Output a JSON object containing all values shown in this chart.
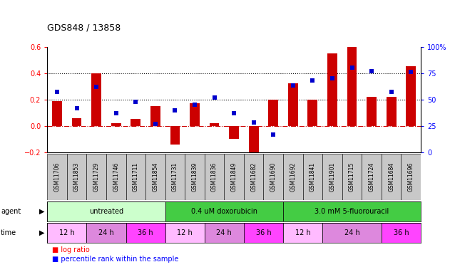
{
  "title": "GDS848 / 13858",
  "samples": [
    "GSM11706",
    "GSM11853",
    "GSM11729",
    "GSM11746",
    "GSM11711",
    "GSM11854",
    "GSM11731",
    "GSM11839",
    "GSM11836",
    "GSM11849",
    "GSM11682",
    "GSM11690",
    "GSM11692",
    "GSM11841",
    "GSM11901",
    "GSM11715",
    "GSM11724",
    "GSM11684",
    "GSM11696"
  ],
  "log_ratio": [
    0.19,
    0.06,
    0.4,
    0.02,
    0.05,
    0.15,
    -0.14,
    0.17,
    0.02,
    -0.1,
    -0.23,
    0.2,
    0.32,
    0.2,
    0.55,
    0.6,
    0.22,
    0.22,
    0.45
  ],
  "percentile": [
    57,
    42,
    62,
    37,
    48,
    27,
    40,
    45,
    52,
    37,
    28,
    17,
    63,
    68,
    70,
    80,
    77,
    57,
    76
  ],
  "agents": [
    {
      "label": "untreated",
      "start": 0,
      "end": 6,
      "color": "#ccffcc"
    },
    {
      "label": "0.4 uM doxorubicin",
      "start": 6,
      "end": 12,
      "color": "#44cc44"
    },
    {
      "label": "3.0 mM 5-fluorouracil",
      "start": 12,
      "end": 19,
      "color": "#44cc44"
    }
  ],
  "times": [
    {
      "label": "12 h",
      "start": 0,
      "end": 2,
      "color": "#ffbbff"
    },
    {
      "label": "24 h",
      "start": 2,
      "end": 4,
      "color": "#dd88dd"
    },
    {
      "label": "36 h",
      "start": 4,
      "end": 6,
      "color": "#ff44ff"
    },
    {
      "label": "12 h",
      "start": 6,
      "end": 8,
      "color": "#ffbbff"
    },
    {
      "label": "24 h",
      "start": 8,
      "end": 10,
      "color": "#dd88dd"
    },
    {
      "label": "36 h",
      "start": 10,
      "end": 12,
      "color": "#ff44ff"
    },
    {
      "label": "12 h",
      "start": 12,
      "end": 14,
      "color": "#ffbbff"
    },
    {
      "label": "24 h",
      "start": 14,
      "end": 17,
      "color": "#dd88dd"
    },
    {
      "label": "36 h",
      "start": 17,
      "end": 19,
      "color": "#ff44ff"
    }
  ],
  "ylim_left": [
    -0.2,
    0.6
  ],
  "ylim_right": [
    0,
    100
  ],
  "yticks_left": [
    -0.2,
    0.0,
    0.2,
    0.4,
    0.6
  ],
  "yticks_right": [
    0,
    25,
    50,
    75,
    100
  ],
  "bar_color": "#cc0000",
  "dot_color": "#0000cc",
  "hline_color": "#cc0000",
  "dotted_lines": [
    0.2,
    0.4
  ],
  "n_samples": 19,
  "bar_width": 0.5,
  "dot_size": 4,
  "sample_label_fontsize": 5.5,
  "axis_fontsize": 7,
  "title_fontsize": 9,
  "row_fontsize": 7
}
